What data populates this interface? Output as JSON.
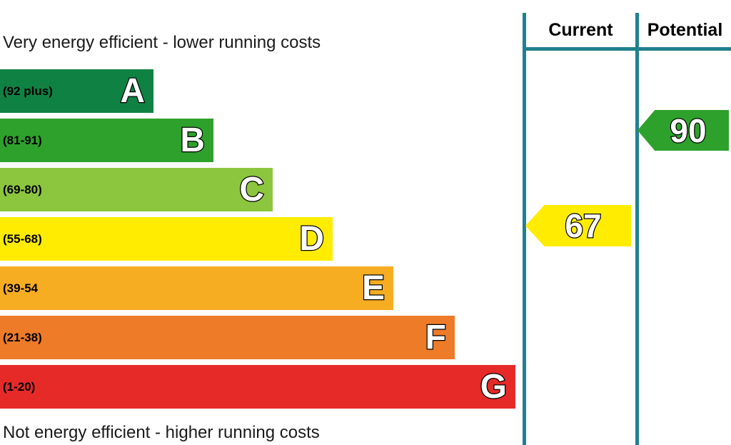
{
  "captions": {
    "top": "Very energy efficient - lower running costs",
    "bottom": "Not energy efficient - higher running costs"
  },
  "columns": {
    "current_label": "Current",
    "potential_label": "Potential"
  },
  "colors": {
    "divider": "#20808f",
    "letter_fill": "#ffffff",
    "letter_outline": "#000000"
  },
  "chart_data": {
    "type": "bar",
    "title": "",
    "bands": [
      {
        "letter": "A",
        "range": "(92 plus)",
        "color": "#0f8243"
      },
      {
        "letter": "B",
        "range": "(81-91)",
        "color": "#2ea12c"
      },
      {
        "letter": "C",
        "range": "(69-80)",
        "color": "#8cc63e"
      },
      {
        "letter": "D",
        "range": "(55-68)",
        "color": "#ffec00"
      },
      {
        "letter": "E",
        "range": "(39-54",
        "color": "#f7ad22"
      },
      {
        "letter": "F",
        "range": "(21-38)",
        "color": "#ee7b28"
      },
      {
        "letter": "G",
        "range": "(1-20)",
        "color": "#e52a28"
      }
    ],
    "current": {
      "value": 67,
      "band": "D",
      "color": "#ffec00"
    },
    "potential": {
      "value": 90,
      "band": "B",
      "color": "#2ea12c"
    }
  }
}
